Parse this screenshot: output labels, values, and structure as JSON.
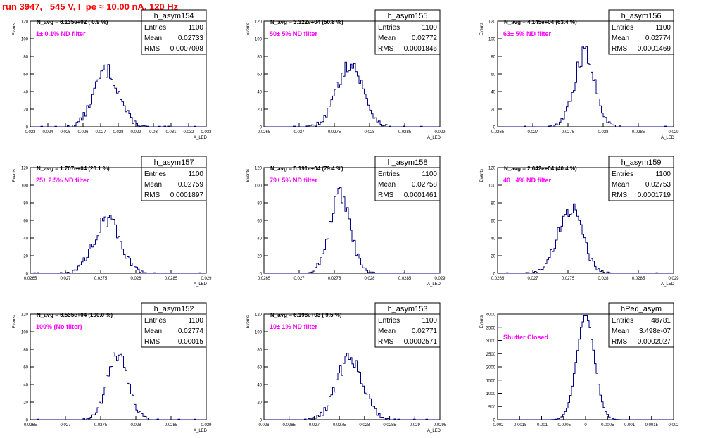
{
  "page_title": "run 3947,   545 V, I_pe ≈ 10.00 nA, 120 Hz",
  "colors": {
    "title": "#ff0000",
    "histogram_line": "#000080",
    "annotation": "#ff00ff",
    "frame": "#000000",
    "background": "#ffffff"
  },
  "chart_data": [
    {
      "type": "bar",
      "histogram_name": "h_asym154",
      "navg_label": "N_avg = 6.135e+02 ( 0.9 %)",
      "filter_label": "1± 0.1% ND filter",
      "xlabel": "A_LED",
      "ylabel": "Events",
      "stats": [
        {
          "key": "Entries",
          "value": "1100"
        },
        {
          "key": "Mean",
          "value": "0.02733"
        },
        {
          "key": "RMS",
          "value": "0.0007098"
        }
      ],
      "xlim": [
        0.023,
        0.033
      ],
      "ylim": [
        0,
        120
      ],
      "x_ticks": [
        0.023,
        0.024,
        0.025,
        0.026,
        0.027,
        0.028,
        0.029,
        0.03,
        0.031,
        0.032,
        0.033
      ],
      "x_tick_labels": [
        "0.023",
        "0.024",
        "0.025",
        "0.026",
        "0.027",
        "0.028",
        "0.029",
        "0.03",
        "0.031",
        "0.032",
        "0.033"
      ],
      "y_ticks": [
        0,
        20,
        40,
        60,
        80,
        100,
        120
      ],
      "y_tick_labels": [
        "0",
        "20",
        "40",
        "60",
        "80",
        "100",
        "120"
      ],
      "mean": 0.02733,
      "rms": 0.0007098,
      "peak": 64,
      "entries": 1100
    },
    {
      "type": "bar",
      "histogram_name": "h_asym155",
      "navg_label": "N_avg = 3.322e+04 (50.8 %)",
      "filter_label": "50± 5% ND filter",
      "xlabel": "A_LED",
      "ylabel": "Events",
      "stats": [
        {
          "key": "Entries",
          "value": "1100"
        },
        {
          "key": "Mean",
          "value": "0.02772"
        },
        {
          "key": "RMS",
          "value": "0.0001846"
        }
      ],
      "xlim": [
        0.0265,
        0.029
      ],
      "ylim": [
        0,
        120
      ],
      "x_ticks": [
        0.0265,
        0.027,
        0.0275,
        0.028,
        0.0285,
        0.029
      ],
      "x_tick_labels": [
        "0.0265",
        "0.027",
        "0.0275",
        "0.028",
        "0.0285",
        "0.029"
      ],
      "y_ticks": [
        0,
        20,
        40,
        60,
        80,
        100,
        120
      ],
      "y_tick_labels": [
        "0",
        "20",
        "40",
        "60",
        "80",
        "100",
        "120"
      ],
      "mean": 0.02772,
      "rms": 0.0001846,
      "peak": 72,
      "entries": 1100
    },
    {
      "type": "bar",
      "histogram_name": "h_asym156",
      "navg_label": "N_avg = 4.145e+04 (63.4 %)",
      "filter_label": "63± 5% ND filter",
      "xlabel": "A_LED",
      "ylabel": "Events",
      "stats": [
        {
          "key": "Entries",
          "value": "1100"
        },
        {
          "key": "Mean",
          "value": "0.02774"
        },
        {
          "key": "RMS",
          "value": "0.0001469"
        }
      ],
      "xlim": [
        0.0265,
        0.029
      ],
      "ylim": [
        0,
        120
      ],
      "x_ticks": [
        0.0265,
        0.027,
        0.0275,
        0.028,
        0.0285,
        0.029
      ],
      "x_tick_labels": [
        "0.0265",
        "0.027",
        "0.0275",
        "0.028",
        "0.0285",
        "0.029"
      ],
      "y_ticks": [
        0,
        20,
        40,
        60,
        80,
        100,
        120
      ],
      "y_tick_labels": [
        "0",
        "20",
        "40",
        "60",
        "80",
        "100",
        "120"
      ],
      "mean": 0.02774,
      "rms": 0.0001469,
      "peak": 83,
      "entries": 1100
    },
    {
      "type": "bar",
      "histogram_name": "h_asym157",
      "navg_label": "N_avg = 1.707e+04 (26.1 %)",
      "filter_label": "25± 2.5% ND filter",
      "xlabel": "A_LED",
      "ylabel": "Events",
      "stats": [
        {
          "key": "Entries",
          "value": "1100"
        },
        {
          "key": "Mean",
          "value": "0.02759"
        },
        {
          "key": "RMS",
          "value": "0.0001897"
        }
      ],
      "xlim": [
        0.0265,
        0.029
      ],
      "ylim": [
        0,
        120
      ],
      "x_ticks": [
        0.0265,
        0.027,
        0.0275,
        0.028,
        0.0285,
        0.029
      ],
      "x_tick_labels": [
        "0.0265",
        "0.027",
        "0.0275",
        "0.028",
        "0.0285",
        "0.029"
      ],
      "y_ticks": [
        0,
        20,
        40,
        60,
        80,
        100,
        120
      ],
      "y_tick_labels": [
        "0",
        "20",
        "40",
        "60",
        "80",
        "100",
        "120"
      ],
      "mean": 0.02759,
      "rms": 0.0001897,
      "peak": 61,
      "entries": 1100
    },
    {
      "type": "bar",
      "histogram_name": "h_asym158",
      "navg_label": "N_avg = 5.191e+04 (79.4 %)",
      "filter_label": "79± 5% ND filter",
      "xlabel": "A_LED",
      "ylabel": "Events",
      "stats": [
        {
          "key": "Entries",
          "value": "1100"
        },
        {
          "key": "Mean",
          "value": "0.02758"
        },
        {
          "key": "RMS",
          "value": "0.0001461"
        }
      ],
      "xlim": [
        0.0265,
        0.029
      ],
      "ylim": [
        0,
        120
      ],
      "x_ticks": [
        0.0265,
        0.027,
        0.0275,
        0.028,
        0.0285,
        0.029
      ],
      "x_tick_labels": [
        "0.0265",
        "0.027",
        "0.0275",
        "0.028",
        "0.0285",
        "0.029"
      ],
      "y_ticks": [
        0,
        20,
        40,
        60,
        80,
        100,
        120
      ],
      "y_tick_labels": [
        "0",
        "20",
        "40",
        "60",
        "80",
        "100",
        "120"
      ],
      "mean": 0.02758,
      "rms": 0.0001461,
      "peak": 87,
      "entries": 1100
    },
    {
      "type": "bar",
      "histogram_name": "h_asym159",
      "navg_label": "N_avg = 2.642e+04 (40.4 %)",
      "filter_label": "40± 4% ND filter",
      "xlabel": "A_LED",
      "ylabel": "Events",
      "stats": [
        {
          "key": "Entries",
          "value": "1100"
        },
        {
          "key": "Mean",
          "value": "0.02753"
        },
        {
          "key": "RMS",
          "value": "0.0001719"
        }
      ],
      "xlim": [
        0.0265,
        0.029
      ],
      "ylim": [
        0,
        120
      ],
      "x_ticks": [
        0.0265,
        0.027,
        0.0275,
        0.028,
        0.0285,
        0.029
      ],
      "x_tick_labels": [
        "0.0265",
        "0.027",
        "0.0275",
        "0.028",
        "0.0285",
        "0.029"
      ],
      "y_ticks": [
        0,
        20,
        40,
        60,
        80,
        100,
        120
      ],
      "y_tick_labels": [
        "0",
        "20",
        "40",
        "60",
        "80",
        "100",
        "120"
      ],
      "mean": 0.02753,
      "rms": 0.0001719,
      "peak": 74,
      "entries": 1100
    },
    {
      "type": "bar",
      "histogram_name": "h_asym152",
      "navg_label": "N_avg = 6.535e+04 (100.0 %)",
      "filter_label": "100% (No filter)",
      "xlabel": "A_LED",
      "ylabel": "Events",
      "stats": [
        {
          "key": "Entries",
          "value": "1100"
        },
        {
          "key": "Mean",
          "value": "0.02774"
        },
        {
          "key": "RMS",
          "value": "0.00015"
        }
      ],
      "xlim": [
        0.0265,
        0.029
      ],
      "ylim": [
        0,
        120
      ],
      "x_ticks": [
        0.0265,
        0.027,
        0.0275,
        0.028,
        0.0285,
        0.029
      ],
      "x_tick_labels": [
        "0.0265",
        "0.027",
        "0.0275",
        "0.028",
        "0.0285",
        "0.029"
      ],
      "y_ticks": [
        0,
        20,
        40,
        60,
        80,
        100,
        120
      ],
      "y_tick_labels": [
        "0",
        "20",
        "40",
        "60",
        "80",
        "100",
        "120"
      ],
      "mean": 0.02774,
      "rms": 0.00015,
      "peak": 73,
      "entries": 1100
    },
    {
      "type": "bar",
      "histogram_name": "h_asym153",
      "navg_label": "N_avg = 6.198e+03 ( 9.5 %)",
      "filter_label": "10± 1% ND filter",
      "xlabel": "A_LED",
      "ylabel": "Events",
      "stats": [
        {
          "key": "Entries",
          "value": "1100"
        },
        {
          "key": "Mean",
          "value": "0.02771"
        },
        {
          "key": "RMS",
          "value": "0.0002571"
        }
      ],
      "xlim": [
        0.026,
        0.0295
      ],
      "ylim": [
        0,
        120
      ],
      "x_ticks": [
        0.026,
        0.0265,
        0.027,
        0.0275,
        0.028,
        0.0285,
        0.029,
        0.0295
      ],
      "x_tick_labels": [
        "0.026",
        "0.0265",
        "0.027",
        "0.0275",
        "0.028",
        "0.0285",
        "0.029",
        "0.0295"
      ],
      "y_ticks": [
        0,
        20,
        40,
        60,
        80,
        100,
        120
      ],
      "y_tick_labels": [
        "0",
        "20",
        "40",
        "60",
        "80",
        "100",
        "120"
      ],
      "mean": 0.02771,
      "rms": 0.0002571,
      "peak": 70,
      "entries": 1100
    },
    {
      "type": "bar",
      "histogram_name": "hPed_asym",
      "navg_label": "",
      "filter_label": "Shutter Closed",
      "xlabel": "",
      "ylabel": "Events",
      "stats": [
        {
          "key": "Entries",
          "value": "48781"
        },
        {
          "key": "Mean",
          "value": "3.498e-07"
        },
        {
          "key": "RMS",
          "value": "0.0002027"
        }
      ],
      "xlim": [
        -0.002,
        0.002
      ],
      "ylim": [
        0,
        4000
      ],
      "x_ticks": [
        -0.002,
        -0.0015,
        -0.001,
        -0.0005,
        0,
        0.0005,
        0.001,
        0.0015,
        0.002
      ],
      "x_tick_labels": [
        "-0.002",
        "-0.0015",
        "-0.001",
        "-0.0005",
        "0",
        "0.0005",
        "0.001",
        "0.0015",
        "0.002"
      ],
      "y_ticks": [
        0,
        500,
        1000,
        1500,
        2000,
        2500,
        3000,
        3500,
        4000
      ],
      "y_tick_labels": [
        "0",
        "500",
        "1000",
        "1500",
        "2000",
        "2500",
        "3000",
        "3500",
        "4000"
      ],
      "mean": 3.5e-07,
      "rms": 0.0002027,
      "peak": 3900,
      "entries": 48781
    }
  ]
}
